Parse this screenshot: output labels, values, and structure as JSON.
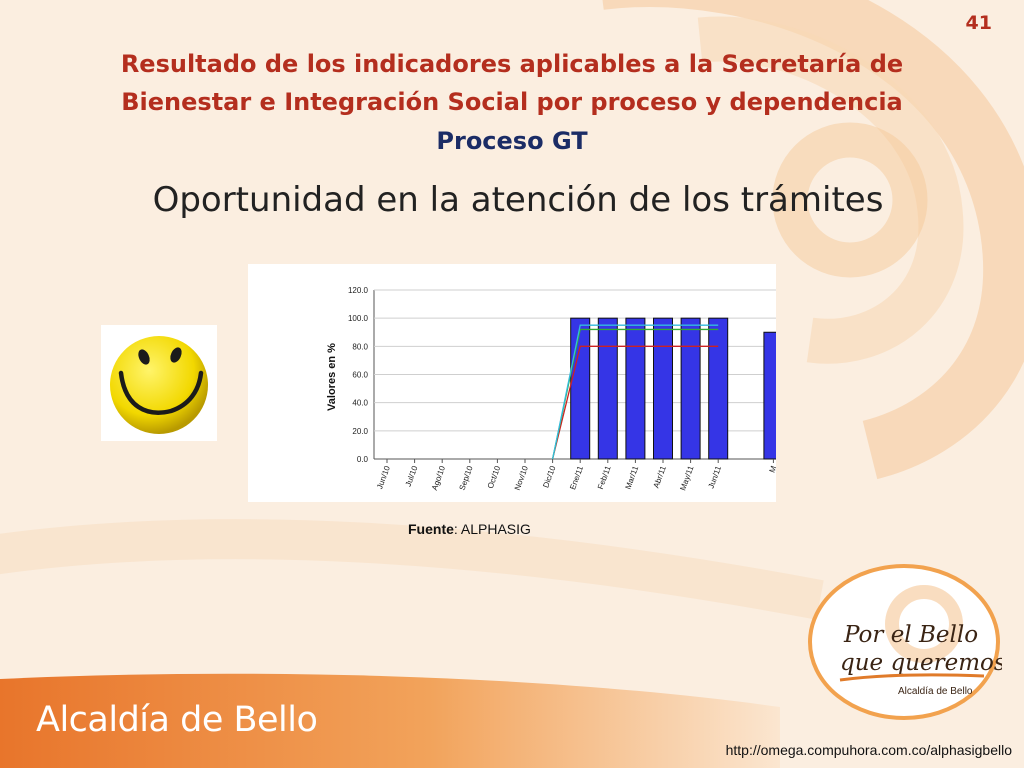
{
  "slide": {
    "page_number": "41",
    "title_line1": "Resultado de los indicadores aplicables a la Secretaría de",
    "title_line2": "Bienestar e Integración Social por proceso y dependencia",
    "process": "Proceso GT",
    "subtitle": "Oportunidad en la atención de los trámites",
    "source_label": "Fuente",
    "source_value": ": ALPHASIG",
    "footer_brand": "Alcaldía de Bello",
    "url": "http://omega.compuhora.com.co/alphasigbello",
    "badge_line1": "Por el Bello",
    "badge_line2": "que queremos",
    "badge_line3": "Alcaldía de Bello",
    "colors": {
      "title": "#b42e1e",
      "process": "#1b2c66",
      "accent": "#f29a3a"
    }
  },
  "chart_data": {
    "type": "bar",
    "ylabel": "Valores en %",
    "xlabel": "",
    "ylim": [
      0,
      120
    ],
    "yticks": [
      "0.0",
      "20.0",
      "40.0",
      "60.0",
      "80.0",
      "100.0",
      "120.0"
    ],
    "categories": [
      "Jun/10",
      "Jul/10",
      "Ago/10",
      "Sep/10",
      "Oct/10",
      "Nov/10",
      "Dic/10",
      "Ene/11",
      "Feb/11",
      "Mar/11",
      "Abr/11",
      "May/11",
      "Jun/11",
      "",
      "M"
    ],
    "series": [
      {
        "type": "bar",
        "color": "#3535e6",
        "values": [
          null,
          null,
          null,
          null,
          null,
          null,
          null,
          100,
          100,
          100,
          100,
          100,
          100,
          null,
          90
        ]
      },
      {
        "type": "line",
        "color": "#cc2222",
        "values": [
          null,
          null,
          null,
          null,
          null,
          null,
          0,
          80,
          80,
          80,
          80,
          80,
          80,
          null,
          null
        ]
      },
      {
        "type": "line",
        "color": "#33aa33",
        "values": [
          null,
          null,
          null,
          null,
          null,
          null,
          0,
          92,
          92,
          92,
          92,
          92,
          92,
          null,
          null
        ]
      },
      {
        "type": "line",
        "color": "#33bbdd",
        "values": [
          null,
          null,
          null,
          null,
          null,
          null,
          0,
          95,
          95,
          95,
          95,
          95,
          95,
          null,
          null
        ]
      }
    ],
    "legend": "none",
    "grid": true
  }
}
